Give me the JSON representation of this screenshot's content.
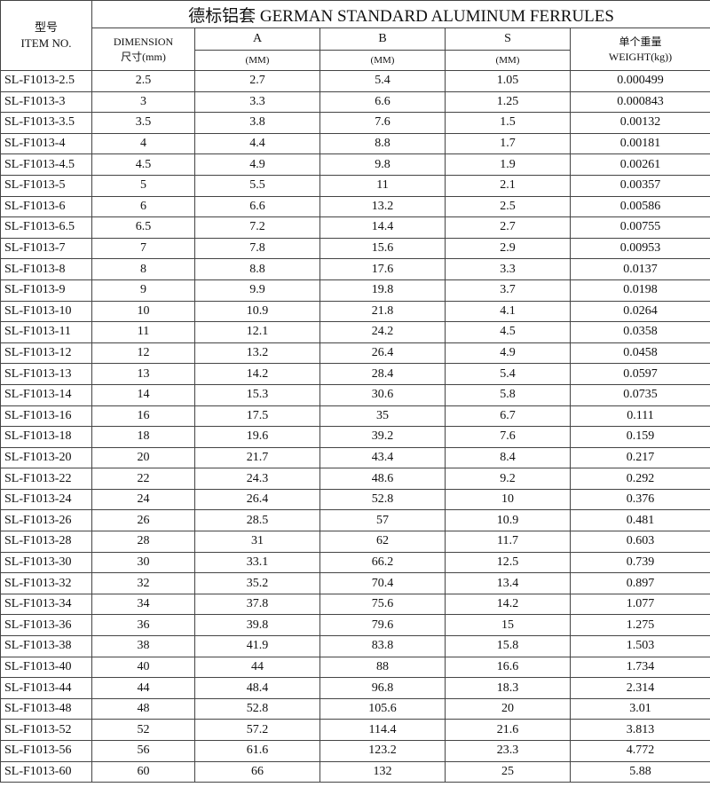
{
  "title": "德标铝套 GERMAN STANDARD ALUMINUM FERRULES",
  "headers": {
    "item_cn": "型号",
    "item_en": "ITEM NO.",
    "dim_en": "DIMENSION",
    "dim_cn": "尺寸(mm)",
    "a": "A",
    "b": "B",
    "s": "S",
    "unit": "(MM)",
    "weight_cn": "单个重量",
    "weight_en": "WEIGHT(kg))"
  },
  "rows": [
    [
      "SL-F1013-2.5",
      "2.5",
      "2.7",
      "5.4",
      "1.05",
      "0.000499"
    ],
    [
      "SL-F1013-3",
      "3",
      "3.3",
      "6.6",
      "1.25",
      "0.000843"
    ],
    [
      "SL-F1013-3.5",
      "3.5",
      "3.8",
      "7.6",
      "1.5",
      "0.00132"
    ],
    [
      "SL-F1013-4",
      "4",
      "4.4",
      "8.8",
      "1.7",
      "0.00181"
    ],
    [
      "SL-F1013-4.5",
      "4.5",
      "4.9",
      "9.8",
      "1.9",
      "0.00261"
    ],
    [
      "SL-F1013-5",
      "5",
      "5.5",
      "11",
      "2.1",
      "0.00357"
    ],
    [
      "SL-F1013-6",
      "6",
      "6.6",
      "13.2",
      "2.5",
      "0.00586"
    ],
    [
      "SL-F1013-6.5",
      "6.5",
      "7.2",
      "14.4",
      "2.7",
      "0.00755"
    ],
    [
      "SL-F1013-7",
      "7",
      "7.8",
      "15.6",
      "2.9",
      "0.00953"
    ],
    [
      "SL-F1013-8",
      "8",
      "8.8",
      "17.6",
      "3.3",
      "0.0137"
    ],
    [
      "SL-F1013-9",
      "9",
      "9.9",
      "19.8",
      "3.7",
      "0.0198"
    ],
    [
      "SL-F1013-10",
      "10",
      "10.9",
      "21.8",
      "4.1",
      "0.0264"
    ],
    [
      "SL-F1013-11",
      "11",
      "12.1",
      "24.2",
      "4.5",
      "0.0358"
    ],
    [
      "SL-F1013-12",
      "12",
      "13.2",
      "26.4",
      "4.9",
      "0.0458"
    ],
    [
      "SL-F1013-13",
      "13",
      "14.2",
      "28.4",
      "5.4",
      "0.0597"
    ],
    [
      "SL-F1013-14",
      "14",
      "15.3",
      "30.6",
      "5.8",
      "0.0735"
    ],
    [
      "SL-F1013-16",
      "16",
      "17.5",
      "35",
      "6.7",
      "0.111"
    ],
    [
      "SL-F1013-18",
      "18",
      "19.6",
      "39.2",
      "7.6",
      "0.159"
    ],
    [
      "SL-F1013-20",
      "20",
      "21.7",
      "43.4",
      "8.4",
      "0.217"
    ],
    [
      "SL-F1013-22",
      "22",
      "24.3",
      "48.6",
      "9.2",
      "0.292"
    ],
    [
      "SL-F1013-24",
      "24",
      "26.4",
      "52.8",
      "10",
      "0.376"
    ],
    [
      "SL-F1013-26",
      "26",
      "28.5",
      "57",
      "10.9",
      "0.481"
    ],
    [
      "SL-F1013-28",
      "28",
      "31",
      "62",
      "11.7",
      "0.603"
    ],
    [
      "SL-F1013-30",
      "30",
      "33.1",
      "66.2",
      "12.5",
      "0.739"
    ],
    [
      "SL-F1013-32",
      "32",
      "35.2",
      "70.4",
      "13.4",
      "0.897"
    ],
    [
      "SL-F1013-34",
      "34",
      "37.8",
      "75.6",
      "14.2",
      "1.077"
    ],
    [
      "SL-F1013-36",
      "36",
      "39.8",
      "79.6",
      "15",
      "1.275"
    ],
    [
      "SL-F1013-38",
      "38",
      "41.9",
      "83.8",
      "15.8",
      "1.503"
    ],
    [
      "SL-F1013-40",
      "40",
      "44",
      "88",
      "16.6",
      "1.734"
    ],
    [
      "SL-F1013-44",
      "44",
      "48.4",
      "96.8",
      "18.3",
      "2.314"
    ],
    [
      "SL-F1013-48",
      "48",
      "52.8",
      "105.6",
      "20",
      "3.01"
    ],
    [
      "SL-F1013-52",
      "52",
      "57.2",
      "114.4",
      "21.6",
      "3.813"
    ],
    [
      "SL-F1013-56",
      "56",
      "61.6",
      "123.2",
      "23.3",
      "4.772"
    ],
    [
      "SL-F1013-60",
      "60",
      "66",
      "132",
      "25",
      "5.88"
    ]
  ]
}
